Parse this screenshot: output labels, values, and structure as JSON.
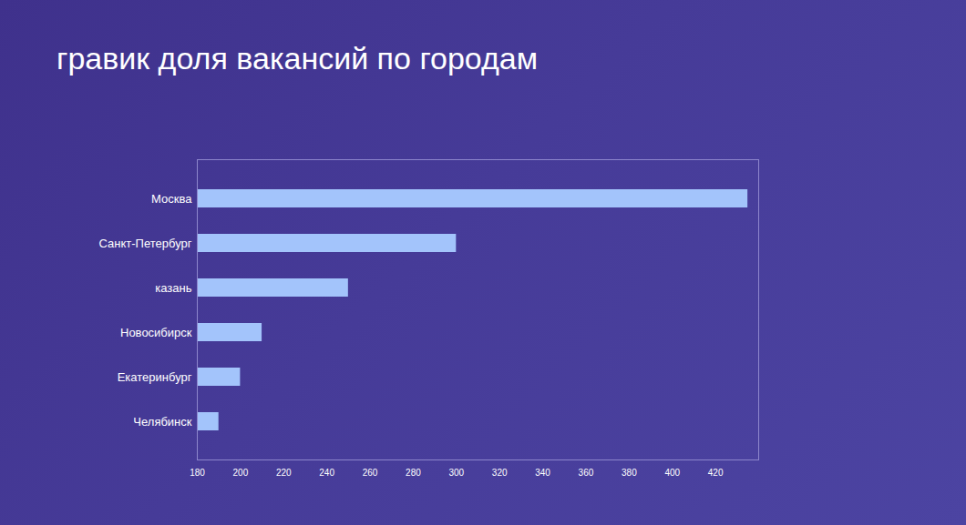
{
  "chart_data": {
    "type": "bar",
    "title": "гравик доля вакансий по городам",
    "orientation": "horizontal",
    "categories": [
      "Москва",
      "Санкт-Петербург",
      "казань",
      "Новосибирск",
      "Екатеринбург",
      "Челябинск"
    ],
    "values": [
      435,
      300,
      250,
      210,
      200,
      190
    ],
    "color": "#a3c4fb",
    "xlim": [
      180,
      440
    ],
    "xticks": [
      180,
      200,
      220,
      240,
      260,
      280,
      300,
      320,
      340,
      360,
      380,
      400,
      420
    ],
    "grid": false
  }
}
